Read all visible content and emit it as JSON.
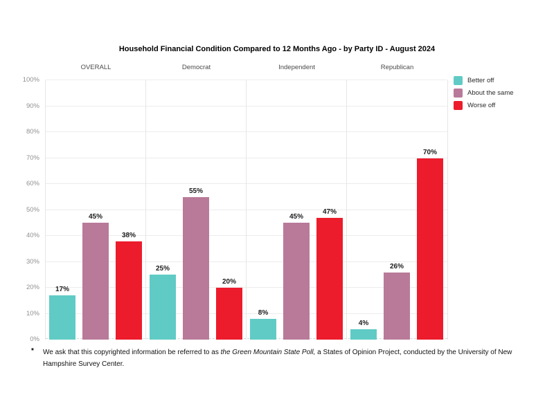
{
  "title": "Household Financial Condition Compared to 12 Months Ago - by Party ID - August 2024",
  "chart_data": {
    "type": "bar",
    "groups": [
      "OVERALL",
      "Democrat",
      "Independent",
      "Republican"
    ],
    "series": [
      {
        "name": "Better off",
        "color": "#60cbc5",
        "values": [
          17,
          25,
          8,
          4
        ]
      },
      {
        "name": "About the same",
        "color": "#b97a99",
        "values": [
          45,
          55,
          45,
          26
        ]
      },
      {
        "name": "Worse off",
        "color": "#ec1c2c",
        "values": [
          38,
          20,
          47,
          70
        ]
      }
    ],
    "ylim": [
      0,
      100
    ],
    "ytick_step": 10,
    "ytick_labels": [
      "0%",
      "10%",
      "20%",
      "30%",
      "40%",
      "50%",
      "60%",
      "70%",
      "80%",
      "90%",
      "100%"
    ],
    "value_label_suffix": "%",
    "grid": true,
    "legend_position": "top-right"
  },
  "footnote": {
    "marker": "*",
    "prefix": "We ask that this copyrighted information be referred to as ",
    "italic": "the Green Mountain State Poll,",
    "suffix": " a States of Opinion Project, conducted by the University of New Hampshire Survey Center."
  }
}
